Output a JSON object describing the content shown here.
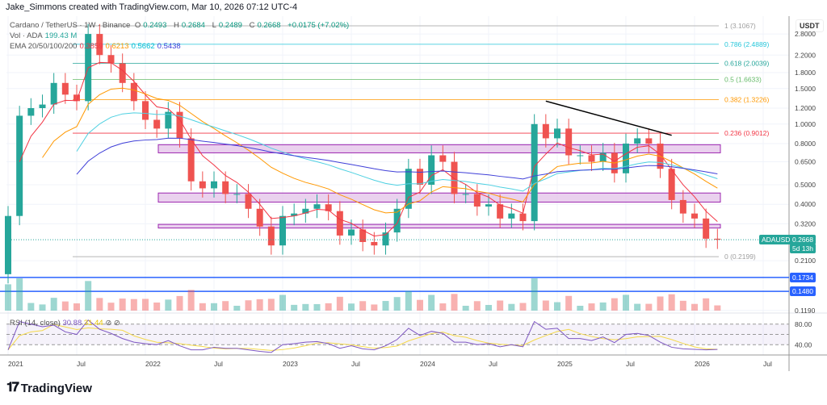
{
  "header": {
    "credit": "Jake_Simmons created with TradingView.com, Mar 10, 2026 07:12 UTC-4"
  },
  "legend": {
    "symbol": "Cardano / TetherUS · 1W · Binance",
    "o_label": "O",
    "o": "0.2493",
    "h_label": "H",
    "h": "0.2684",
    "l_label": "L",
    "l": "0.2489",
    "c_label": "C",
    "c": "0.2668",
    "change": "+0.0175 (+7.02%)",
    "vol_label": "Vol · ADA",
    "vol": "199.43 M",
    "ema_label": "EMA 20/50/100/200",
    "ema20": "0.3859",
    "ema50": "0.6213",
    "ema100": "0.5662",
    "ema200": "0.5438",
    "rsi_label": "RSI (14, close)",
    "rsi": "30.88",
    "rsi_ma": "31.44"
  },
  "colors": {
    "up": "#26a69a",
    "down": "#ef5350",
    "ema20": "#f23645",
    "ema50": "#ff9800",
    "ema100": "#4dd0e1",
    "ema200": "#3f3fd8",
    "zone": "#9c27b0",
    "hline": "#2962ff",
    "rsi": "#7e57c2",
    "rsi_ma": "#f5d94a"
  },
  "logo": "TradingView",
  "chart_data": {
    "type": "candlestick",
    "scale": "log",
    "currency_label": "USDT",
    "price_ticks": [
      "2.8000",
      "2.2000",
      "1.8000",
      "1.5000",
      "1.2000",
      "1.0000",
      "0.8000",
      "0.6500",
      "0.5000",
      "0.4000",
      "0.3200",
      "0.2100",
      "0.1190"
    ],
    "rsi_ticks": [
      "80.00",
      "40.00"
    ],
    "time_ticks": [
      "2021",
      "Jul",
      "2022",
      "Jul",
      "2023",
      "Jul",
      "2024",
      "Jul",
      "2025",
      "Jul",
      "2026",
      "Jul"
    ],
    "closes": [
      [
        "2021-01",
        0.35
      ],
      [
        "2021-02",
        1.1
      ],
      [
        "2021-03",
        1.2
      ],
      [
        "2021-04",
        1.25
      ],
      [
        "2021-05",
        1.6
      ],
      [
        "2021-06",
        1.4
      ],
      [
        "2021-07",
        1.3
      ],
      [
        "2021-08",
        2.8
      ],
      [
        "2021-09",
        2.2
      ],
      [
        "2021-10",
        2.0
      ],
      [
        "2021-11",
        1.6
      ],
      [
        "2021-12",
        1.3
      ],
      [
        "2022-01",
        1.05
      ],
      [
        "2022-02",
        0.95
      ],
      [
        "2022-03",
        1.15
      ],
      [
        "2022-04",
        0.85
      ],
      [
        "2022-05",
        0.52
      ],
      [
        "2022-06",
        0.48
      ],
      [
        "2022-07",
        0.52
      ],
      [
        "2022-08",
        0.45
      ],
      [
        "2022-09",
        0.45
      ],
      [
        "2022-10",
        0.38
      ],
      [
        "2022-11",
        0.31
      ],
      [
        "2022-12",
        0.25
      ],
      [
        "2023-01",
        0.35
      ],
      [
        "2023-02",
        0.36
      ],
      [
        "2023-03",
        0.38
      ],
      [
        "2023-04",
        0.4
      ],
      [
        "2023-05",
        0.37
      ],
      [
        "2023-06",
        0.28
      ],
      [
        "2023-07",
        0.3
      ],
      [
        "2023-08",
        0.26
      ],
      [
        "2023-09",
        0.25
      ],
      [
        "2023-10",
        0.29
      ],
      [
        "2023-11",
        0.38
      ],
      [
        "2023-12",
        0.6
      ],
      [
        "2024-01",
        0.5
      ],
      [
        "2024-02",
        0.7
      ],
      [
        "2024-03",
        0.65
      ],
      [
        "2024-04",
        0.45
      ],
      [
        "2024-05",
        0.45
      ],
      [
        "2024-06",
        0.39
      ],
      [
        "2024-07",
        0.4
      ],
      [
        "2024-08",
        0.34
      ],
      [
        "2024-09",
        0.36
      ],
      [
        "2024-10",
        0.33
      ],
      [
        "2024-11",
        1.0
      ],
      [
        "2024-12",
        0.85
      ],
      [
        "2025-01",
        0.95
      ],
      [
        "2025-02",
        0.7
      ],
      [
        "2025-03",
        0.7
      ],
      [
        "2025-04",
        0.65
      ],
      [
        "2025-05",
        0.72
      ],
      [
        "2025-06",
        0.57
      ],
      [
        "2025-07",
        0.8
      ],
      [
        "2025-08",
        0.85
      ],
      [
        "2025-09",
        0.8
      ],
      [
        "2025-10",
        0.6
      ],
      [
        "2025-11",
        0.42
      ],
      [
        "2025-12",
        0.36
      ],
      [
        "2026-01",
        0.34
      ],
      [
        "2026-02",
        0.27
      ],
      [
        "2026-03",
        0.2668
      ]
    ],
    "fib_levels": [
      {
        "label": "1 (3.1067)",
        "price": 3.1067,
        "color": "#9e9e9e"
      },
      {
        "label": "0.786 (2.4889)",
        "price": 2.4889,
        "color": "#26c6da"
      },
      {
        "label": "0.618 (2.0039)",
        "price": 2.0039,
        "color": "#26a69a"
      },
      {
        "label": "0.5 (1.6633)",
        "price": 1.6633,
        "color": "#66bb6a"
      },
      {
        "label": "0.382 (1.3226)",
        "price": 1.3226,
        "color": "#ff9800"
      },
      {
        "label": "0.236 (0.9012)",
        "price": 0.9012,
        "color": "#f23645"
      },
      {
        "label": "0 (0.2199)",
        "price": 0.2199,
        "color": "#9e9e9e"
      }
    ],
    "zones": [
      [
        0.72,
        0.79
      ],
      [
        0.41,
        0.455
      ],
      [
        0.305,
        0.318
      ]
    ],
    "horizontal_lines": [
      {
        "label": "0.1734",
        "price": 0.1734
      },
      {
        "label": "0.1480",
        "price": 0.148
      }
    ],
    "trendline": [
      [
        "2024-12",
        1.3
      ],
      [
        "2025-11",
        0.88
      ]
    ],
    "current": {
      "symbol": "ADAUSDT",
      "price": "0.2668",
      "countdown": "5d 13h",
      "value": 0.2668
    },
    "rsi": [
      30,
      85,
      80,
      75,
      78,
      65,
      60,
      88,
      70,
      62,
      52,
      45,
      42,
      40,
      48,
      38,
      30,
      30,
      35,
      33,
      33,
      30,
      27,
      25,
      40,
      42,
      45,
      46,
      42,
      33,
      38,
      32,
      30,
      38,
      50,
      72,
      58,
      66,
      62,
      45,
      45,
      40,
      42,
      36,
      40,
      36,
      85,
      70,
      72,
      52,
      52,
      48,
      55,
      44,
      60,
      62,
      58,
      45,
      35,
      32,
      31,
      30,
      30.88
    ]
  }
}
